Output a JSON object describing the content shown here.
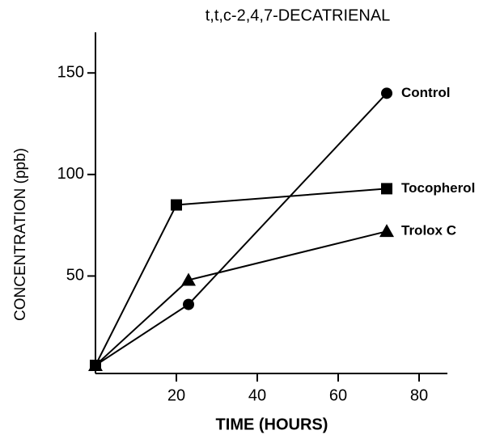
{
  "chart_data": {
    "type": "line",
    "title": "t,t,c-2,4,7-DECATRIENAL",
    "x_label": "TIME (HOURS)",
    "y_label": "CONCENTRATION (ppb)",
    "xlim": [
      0,
      87
    ],
    "ylim": [
      2,
      170
    ],
    "xticks": [
      20,
      40,
      60,
      80
    ],
    "yticks": [
      50,
      100,
      150
    ],
    "series": [
      {
        "name": "Control",
        "color": "#000000",
        "marker": "circle",
        "x": [
          0,
          23,
          72
        ],
        "values": [
          6,
          36,
          140
        ]
      },
      {
        "name": "Tocopherol",
        "color": "#000000",
        "marker": "square",
        "x": [
          0,
          20,
          72
        ],
        "values": [
          6,
          85,
          93
        ]
      },
      {
        "name": "Trolox C",
        "color": "#000000",
        "marker": "triangle",
        "x": [
          0,
          23,
          72
        ],
        "values": [
          6,
          48,
          72
        ]
      }
    ]
  }
}
